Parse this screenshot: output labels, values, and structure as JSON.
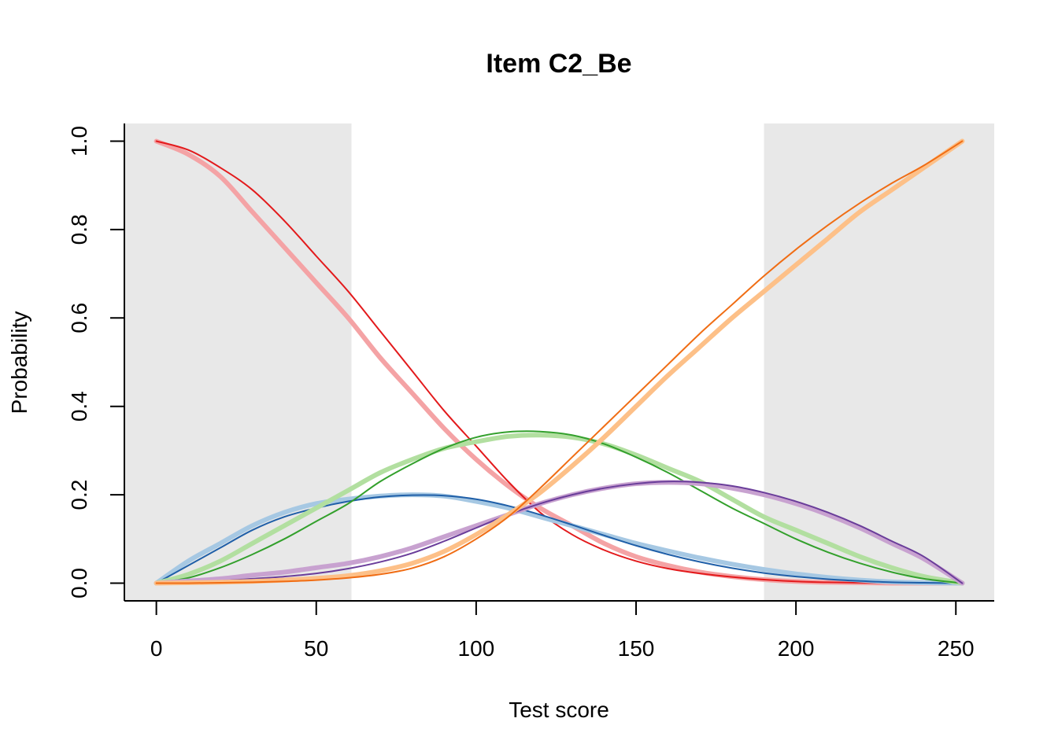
{
  "chart_data": {
    "type": "line",
    "title": "Item C2_Be",
    "xlabel": "Test score",
    "ylabel": "Probability",
    "xlim": [
      -10,
      262
    ],
    "ylim": [
      -0.04,
      1.04
    ],
    "x_ticks": [
      0,
      50,
      100,
      150,
      200,
      250
    ],
    "y_ticks": [
      0.0,
      0.2,
      0.4,
      0.6,
      0.8,
      1.0
    ],
    "x_tick_labels": [
      "0",
      "50",
      "100",
      "150",
      "200",
      "250"
    ],
    "y_tick_labels": [
      "0.0",
      "0.2",
      "0.4",
      "0.6",
      "0.8",
      "1.0"
    ],
    "shaded_ranges": [
      [
        -10,
        61
      ],
      [
        190,
        262
      ]
    ],
    "shade_color": "#e8e8e8",
    "grid": false,
    "legend": "none",
    "x": [
      0,
      10,
      20,
      30,
      40,
      50,
      60,
      70,
      80,
      90,
      100,
      110,
      120,
      130,
      140,
      150,
      160,
      170,
      180,
      190,
      200,
      210,
      220,
      230,
      240,
      252
    ],
    "series": [
      {
        "color": "#f4a3a5",
        "width": 6,
        "values": [
          1.0,
          0.97,
          0.92,
          0.84,
          0.76,
          0.68,
          0.6,
          0.51,
          0.43,
          0.35,
          0.28,
          0.22,
          0.17,
          0.13,
          0.09,
          0.06,
          0.04,
          0.025,
          0.015,
          0.008,
          0.004,
          0.002,
          0.001,
          0.0,
          0.0,
          0.0
        ]
      },
      {
        "color": "#e31a1c",
        "width": 2,
        "values": [
          1.0,
          0.98,
          0.94,
          0.89,
          0.82,
          0.74,
          0.66,
          0.57,
          0.48,
          0.39,
          0.31,
          0.23,
          0.16,
          0.11,
          0.075,
          0.05,
          0.033,
          0.022,
          0.014,
          0.008,
          0.004,
          0.002,
          0.001,
          0.0,
          0.0,
          0.0
        ]
      },
      {
        "color": "#a6c8e3",
        "width": 6,
        "values": [
          0.0,
          0.05,
          0.09,
          0.13,
          0.16,
          0.18,
          0.19,
          0.197,
          0.2,
          0.197,
          0.185,
          0.17,
          0.15,
          0.13,
          0.11,
          0.09,
          0.073,
          0.057,
          0.043,
          0.031,
          0.021,
          0.013,
          0.007,
          0.003,
          0.001,
          0.0
        ]
      },
      {
        "color": "#1f5fa8",
        "width": 2,
        "values": [
          0.0,
          0.04,
          0.08,
          0.12,
          0.15,
          0.17,
          0.185,
          0.195,
          0.199,
          0.198,
          0.19,
          0.175,
          0.155,
          0.132,
          0.108,
          0.085,
          0.065,
          0.048,
          0.034,
          0.023,
          0.015,
          0.009,
          0.005,
          0.002,
          0.001,
          0.0
        ]
      },
      {
        "color": "#b2dfa0",
        "width": 6,
        "values": [
          0.0,
          0.02,
          0.05,
          0.09,
          0.13,
          0.17,
          0.21,
          0.25,
          0.28,
          0.305,
          0.32,
          0.332,
          0.335,
          0.33,
          0.315,
          0.29,
          0.26,
          0.23,
          0.19,
          0.15,
          0.12,
          0.09,
          0.06,
          0.035,
          0.015,
          0.0
        ]
      },
      {
        "color": "#33a02c",
        "width": 2,
        "values": [
          0.0,
          0.012,
          0.035,
          0.065,
          0.1,
          0.14,
          0.18,
          0.23,
          0.27,
          0.305,
          0.33,
          0.342,
          0.343,
          0.335,
          0.315,
          0.285,
          0.25,
          0.21,
          0.17,
          0.135,
          0.1,
          0.07,
          0.045,
          0.025,
          0.01,
          0.0
        ]
      },
      {
        "color": "#c8a2d0",
        "width": 6,
        "values": [
          0.0,
          0.005,
          0.01,
          0.018,
          0.025,
          0.035,
          0.045,
          0.06,
          0.08,
          0.105,
          0.13,
          0.155,
          0.18,
          0.2,
          0.215,
          0.225,
          0.228,
          0.225,
          0.215,
          0.2,
          0.18,
          0.155,
          0.125,
          0.09,
          0.055,
          0.0
        ]
      },
      {
        "color": "#6a3d9a",
        "width": 2,
        "values": [
          0.0,
          0.002,
          0.005,
          0.01,
          0.015,
          0.022,
          0.033,
          0.048,
          0.068,
          0.095,
          0.125,
          0.155,
          0.18,
          0.2,
          0.215,
          0.225,
          0.23,
          0.228,
          0.22,
          0.205,
          0.185,
          0.16,
          0.13,
          0.095,
          0.06,
          0.0
        ]
      },
      {
        "color": "#fdc088",
        "width": 6,
        "values": [
          0.0,
          0.001,
          0.002,
          0.004,
          0.007,
          0.011,
          0.017,
          0.028,
          0.045,
          0.072,
          0.11,
          0.155,
          0.205,
          0.265,
          0.33,
          0.4,
          0.47,
          0.535,
          0.6,
          0.66,
          0.72,
          0.78,
          0.84,
          0.89,
          0.94,
          1.0
        ]
      },
      {
        "color": "#f06d14",
        "width": 2,
        "values": [
          0.0,
          0.0,
          0.001,
          0.002,
          0.004,
          0.007,
          0.012,
          0.02,
          0.034,
          0.06,
          0.1,
          0.15,
          0.215,
          0.285,
          0.355,
          0.425,
          0.495,
          0.565,
          0.63,
          0.695,
          0.755,
          0.81,
          0.86,
          0.905,
          0.945,
          1.0
        ]
      }
    ]
  }
}
